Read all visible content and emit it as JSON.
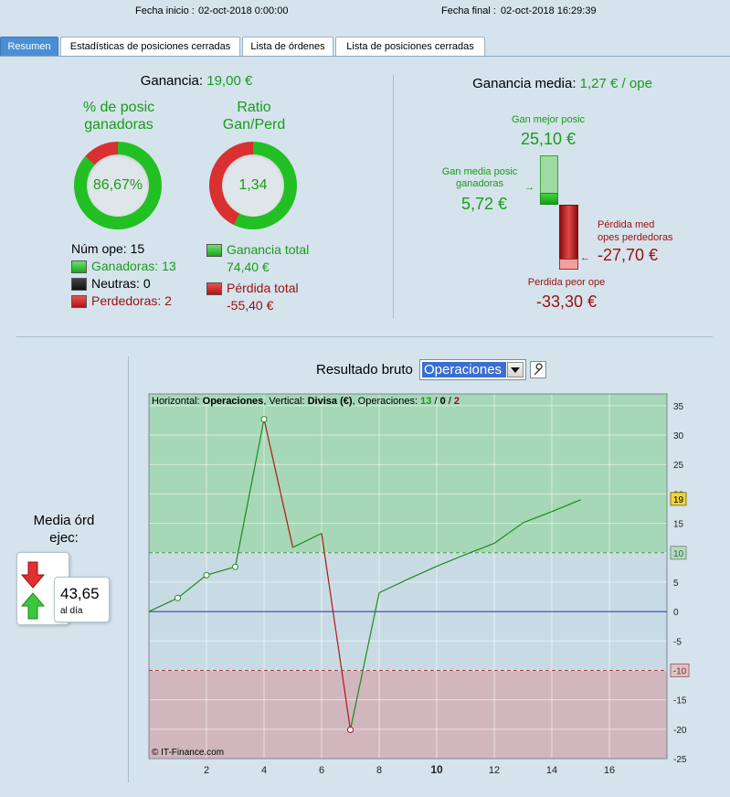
{
  "header": {
    "start_label": "Fecha inicio :",
    "start_value": "02-oct-2018 0:00:00",
    "end_label": "Fecha final :",
    "end_value": "02-oct-2018 16:29:39"
  },
  "tabs": [
    {
      "label": "Resumen",
      "active": true
    },
    {
      "label": "Estadísticas de posiciones cerradas",
      "active": false
    },
    {
      "label": "Lista de órdenes",
      "active": false
    },
    {
      "label": "Lista de posiciones cerradas",
      "active": false
    }
  ],
  "summary": {
    "profit_label": "Ganancia:",
    "profit_value": "19,00 €",
    "win_pct_title_1": "% de posic",
    "win_pct_title_2": "ganadoras",
    "win_pct_value": "86,67%",
    "win_pct_fraction": 0.8667,
    "ratio_title_1": "Ratio",
    "ratio_title_2": "Gan/Perd",
    "ratio_value": "1,34",
    "ratio_green_fraction": 0.573,
    "num_ops_label": "Núm ope:",
    "num_ops_value": "15",
    "winners_label": "Ganadoras:",
    "winners_value": "13",
    "neutral_label": "Neutras:",
    "neutral_value": "0",
    "losers_label": "Perdedoras:",
    "losers_value": "2",
    "total_gain_label": "Ganancia total",
    "total_gain_value": "74,40 €",
    "total_loss_label": "Pérdida total",
    "total_loss_value": "-55,40 €"
  },
  "avg": {
    "label": "Ganancia media:",
    "value": "1,27 € / ope",
    "best_label": "Gan mejor posic",
    "best_value": "25,10 €",
    "avg_win_label_1": "Gan media posic",
    "avg_win_label_2": "ganadoras",
    "avg_win_value": "5,72 €",
    "avg_loss_label_1": "Pérdida med",
    "avg_loss_label_2": "opes perdedoras",
    "avg_loss_value": "-27,70 €",
    "worst_label": "Perdida peor ope",
    "worst_value": "-33,30 €"
  },
  "orders": {
    "title_1": "Media órd",
    "title_2": "ejec:",
    "value": "43,65",
    "unit": "al día"
  },
  "result": {
    "label": "Resultado bruto",
    "select_value": "Operaciones",
    "wrench_icon": "wrench-icon"
  },
  "chart_data": {
    "type": "line",
    "title_parts": {
      "h_label": "Horizontal:",
      "h_value": "Operaciones",
      "v_label": "Vertical:",
      "v_value": "Divisa (€)",
      "ops_label": "Operaciones:",
      "wins": "13",
      "neutral": "0",
      "losses": "2"
    },
    "copyright": "© IT-Finance.com",
    "x": [
      0,
      1,
      2,
      3,
      4,
      5,
      6,
      7,
      8,
      9,
      10,
      11,
      12,
      13,
      14,
      15
    ],
    "y": [
      0,
      2.3,
      6.2,
      7.6,
      32.7,
      10.9,
      13.3,
      -20.1,
      3.2,
      5.5,
      7.7,
      9.7,
      11.6,
      15.1,
      17.0,
      19.0
    ],
    "markers": [
      1,
      2,
      3,
      4,
      7
    ],
    "xlim": [
      0,
      18
    ],
    "ylim": [
      -25,
      37
    ],
    "xticks": [
      "2",
      "4",
      "6",
      "8",
      "10",
      "12",
      "14",
      "16"
    ],
    "yticks": [
      "35",
      "30",
      "25",
      "20",
      "15",
      "10",
      "5",
      "0",
      "-5",
      "-10",
      "-15",
      "-20",
      "-25"
    ],
    "upper_band": 10,
    "lower_band": -10,
    "final_badge": "19",
    "upper_badge": "10",
    "lower_badge": "-10",
    "colors": {
      "up": "#1e8a1e",
      "down": "#b01818",
      "zero": "#1a2ea8",
      "gain_zone": "#a6d7b7",
      "loss_zone": "#d1b6bd",
      "mid_zone": "#c8dbe4"
    }
  }
}
